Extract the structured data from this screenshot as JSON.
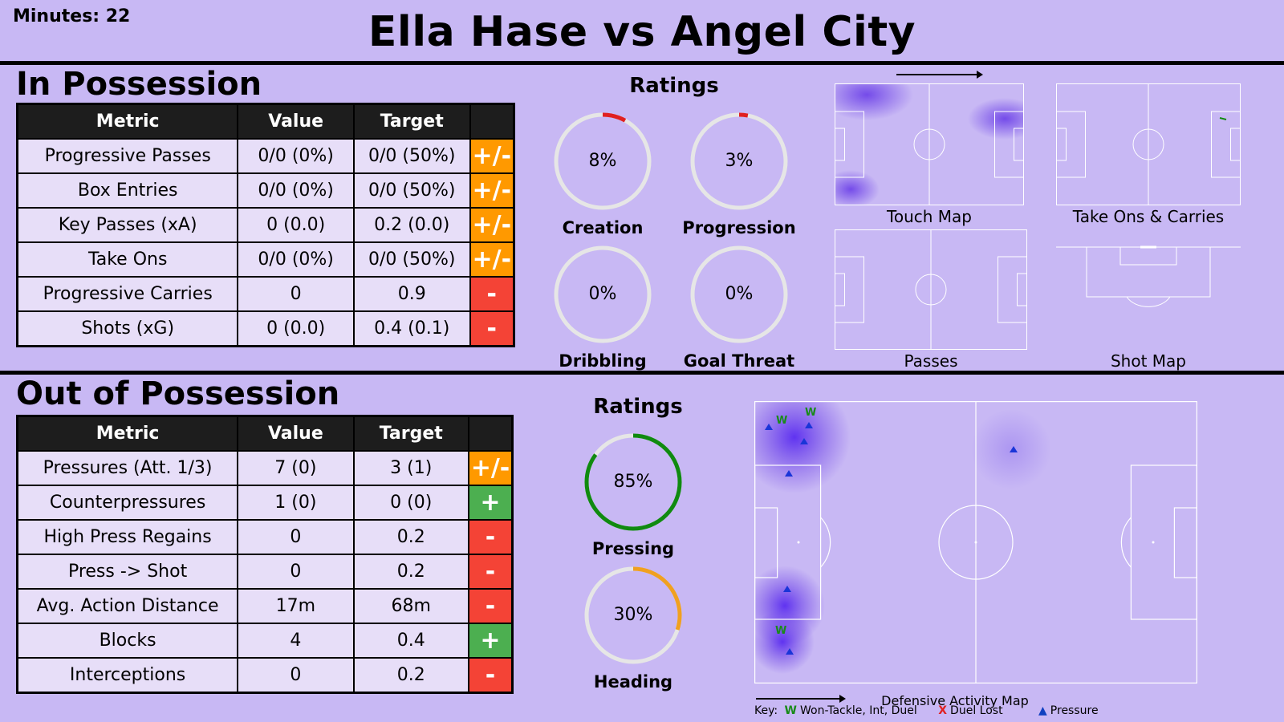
{
  "header": {
    "minutes": "Minutes: 22",
    "title": "Ella Hase vs Angel City"
  },
  "in_possession": {
    "section_title": "In Possession",
    "columns": [
      "Metric",
      "Value",
      "Target",
      ""
    ],
    "rows": [
      {
        "metric": "Progressive Passes",
        "value": "0/0 (0%)",
        "target": "0/0 (50%)",
        "verdict": "+/-"
      },
      {
        "metric": "Box Entries",
        "value": "0/0 (0%)",
        "target": "0/0 (50%)",
        "verdict": "+/-"
      },
      {
        "metric": "Key Passes (xA)",
        "value": "0 (0.0)",
        "target": "0.2 (0.0)",
        "verdict": "+/-"
      },
      {
        "metric": "Take Ons",
        "value": "0/0 (0%)",
        "target": "0/0 (50%)",
        "verdict": "+/-"
      },
      {
        "metric": "Progressive Carries",
        "value": "0",
        "target": "0.9",
        "verdict": "-"
      },
      {
        "metric": "Shots (xG)",
        "value": "0 (0.0)",
        "target": "0.4 (0.1)",
        "verdict": "-"
      }
    ],
    "ratings_title": "Ratings",
    "ratings": [
      {
        "label": "Creation",
        "display": "8%",
        "value": 8,
        "color": "#e02020"
      },
      {
        "label": "Progression",
        "display": "3%",
        "value": 3,
        "color": "#e02020"
      },
      {
        "label": "Dribbling",
        "display": "0%",
        "value": 0,
        "color": "#e02020"
      },
      {
        "label": "Goal Threat",
        "display": "0%",
        "value": 0,
        "color": "#e02020"
      }
    ],
    "pitch_labels": {
      "touch_map": "Touch Map",
      "take_ons_carries": "Take Ons & Carries",
      "passes": "Passes",
      "shot_map": "Shot Map"
    }
  },
  "out_of_possession": {
    "section_title": "Out of Possession",
    "columns": [
      "Metric",
      "Value",
      "Target",
      ""
    ],
    "rows": [
      {
        "metric": "Pressures (Att. 1/3)",
        "value": "7 (0)",
        "target": "3 (1)",
        "verdict": "+/-"
      },
      {
        "metric": "Counterpressures",
        "value": "1 (0)",
        "target": "0 (0)",
        "verdict": "+"
      },
      {
        "metric": "High Press Regains",
        "value": "0",
        "target": "0.2",
        "verdict": "-"
      },
      {
        "metric": "Press -> Shot",
        "value": "0",
        "target": "0.2",
        "verdict": "-"
      },
      {
        "metric": "Avg. Action Distance",
        "value": "17m",
        "target": "68m",
        "verdict": "-"
      },
      {
        "metric": "Blocks",
        "value": "4",
        "target": "0.4",
        "verdict": "+"
      },
      {
        "metric": "Interceptions",
        "value": "0",
        "target": "0.2",
        "verdict": "-"
      }
    ],
    "ratings_title": "Ratings",
    "ratings": [
      {
        "label": "Pressing",
        "display": "85%",
        "value": 85,
        "color": "#108a10"
      },
      {
        "label": "Heading",
        "display": "30%",
        "value": 30,
        "color": "#f0a020"
      }
    ],
    "map_title": "Defensive Activity Map",
    "key": {
      "prefix": "Key:",
      "won_symbol": "W",
      "won_text": "Won-Tackle, Int, Duel",
      "lost_symbol": "X",
      "lost_text": "Duel Lost",
      "pressure_symbol": "▲",
      "pressure_text": "Pressure"
    }
  },
  "colors": {
    "background": "#c8b8f4",
    "mixed": "#ff9900",
    "negative": "#f44336",
    "positive": "#4caf50"
  }
}
